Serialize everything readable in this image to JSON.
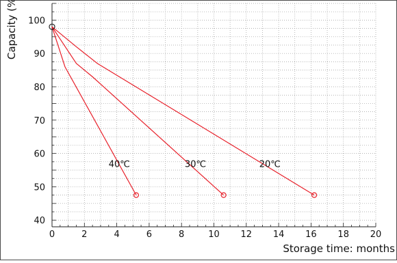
{
  "chart_data": {
    "type": "line",
    "xlabel": "Storage time: months",
    "ylabel": "Capacity (%)",
    "xlim": [
      0,
      20
    ],
    "ylim": [
      38,
      105
    ],
    "x_ticks": [
      0,
      2,
      4,
      6,
      8,
      10,
      12,
      14,
      16,
      18,
      20
    ],
    "y_ticks": [
      40,
      50,
      60,
      70,
      80,
      90,
      100
    ],
    "grid": true,
    "series": [
      {
        "name": "40℃",
        "x": [
          0,
          0.8,
          5.2
        ],
        "y": [
          98,
          86,
          47.5
        ],
        "color": "#e8202a"
      },
      {
        "name": "30℃",
        "x": [
          0,
          1.5,
          2.5,
          10.6
        ],
        "y": [
          98,
          87,
          83,
          47.5
        ],
        "color": "#e8202a"
      },
      {
        "name": "20℃",
        "x": [
          0,
          1.5,
          2.8,
          16.2
        ],
        "y": [
          98,
          92,
          87,
          47.5
        ],
        "color": "#e8202a"
      }
    ],
    "start_point": {
      "x": 0,
      "y": 98
    },
    "label_positions": [
      {
        "series": "40℃",
        "x": 3.5,
        "y": 57
      },
      {
        "series": "30℃",
        "x": 8.2,
        "y": 57
      },
      {
        "series": "20℃",
        "x": 12.8,
        "y": 57
      }
    ]
  }
}
